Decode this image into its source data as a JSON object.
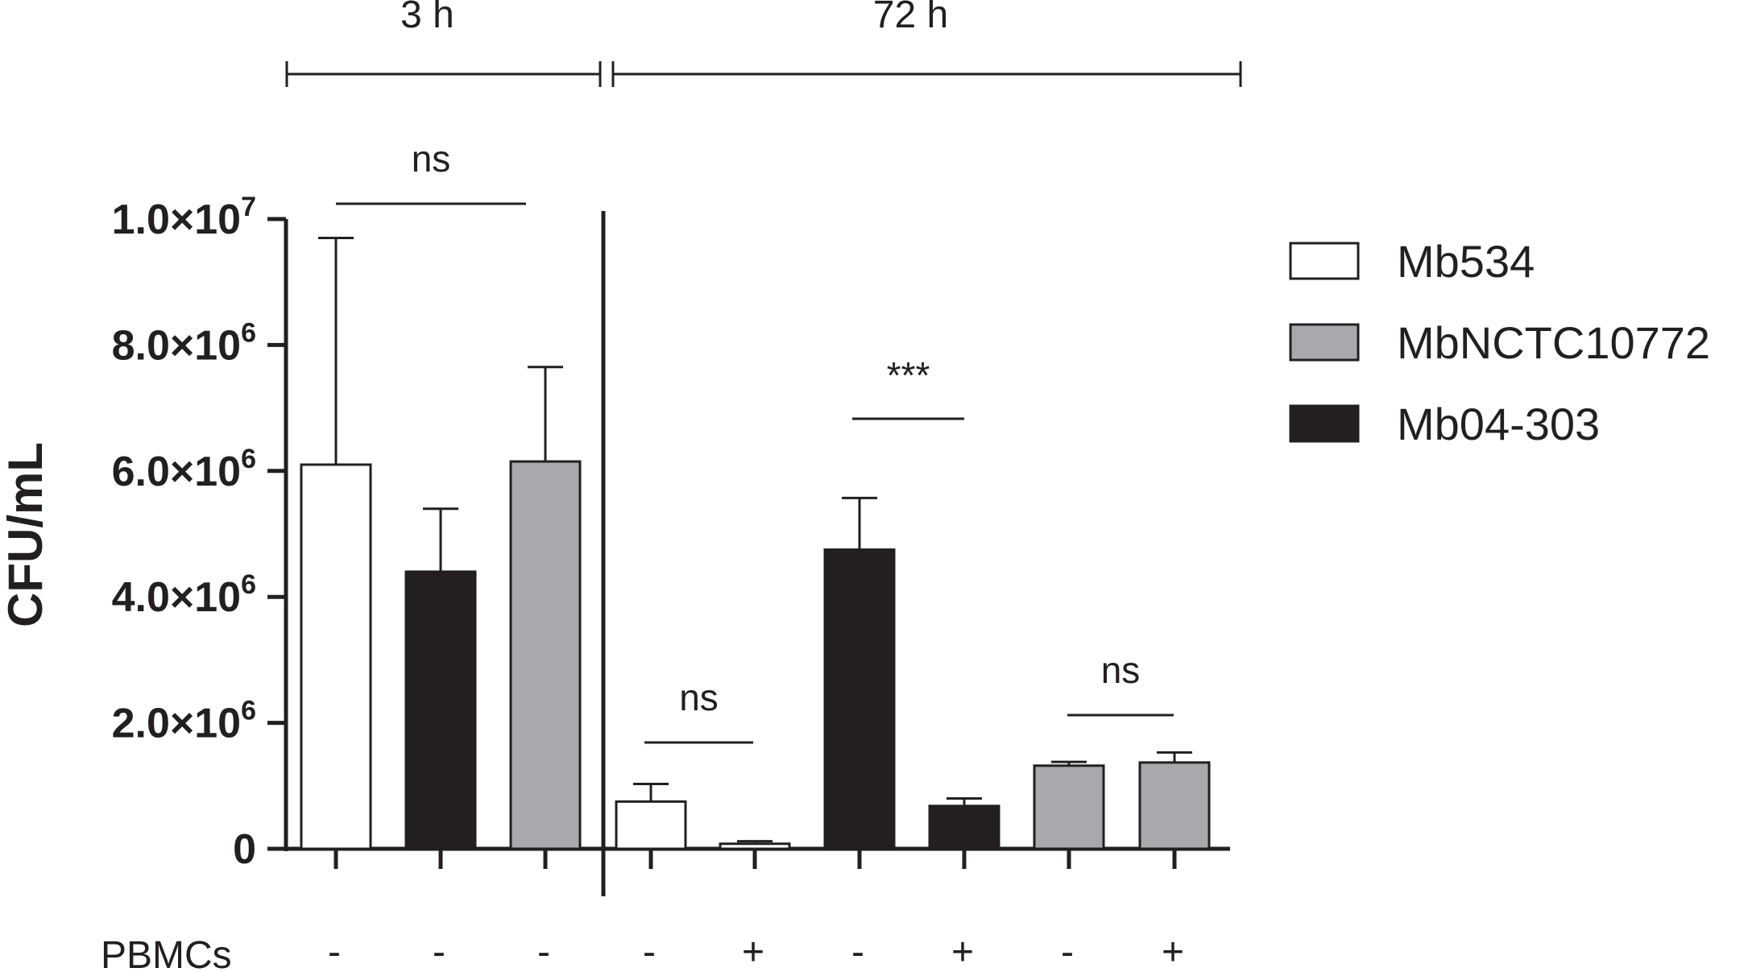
{
  "chart_data": {
    "type": "bar",
    "ylabel": "CFU/mL",
    "ylim": [
      0,
      10000000
    ],
    "yticks": [
      {
        "value": 0,
        "mant": "0",
        "exp": ""
      },
      {
        "value": 2000000,
        "mant": "2.0×10",
        "exp": "6"
      },
      {
        "value": 4000000,
        "mant": "4.0×10",
        "exp": "6"
      },
      {
        "value": 6000000,
        "mant": "6.0×10",
        "exp": "6"
      },
      {
        "value": 8000000,
        "mant": "8.0×10",
        "exp": "6"
      },
      {
        "value": 10000000,
        "mant": "1.0×10",
        "exp": "7"
      }
    ],
    "series": [
      {
        "name": "Mb534",
        "color": "#ffffff"
      },
      {
        "name": "MbNCTC10772",
        "color": "#a7a9ac"
      },
      {
        "name": "Mb04-303",
        "color": "#231f20"
      }
    ],
    "time_groups": [
      {
        "label": "3 h",
        "bars": [
          0,
          1,
          2
        ]
      },
      {
        "label": "72 h",
        "bars": [
          3,
          4,
          5,
          6,
          7,
          8
        ]
      }
    ],
    "row_label": "PBMCs",
    "bars": [
      {
        "series": "Mb534",
        "value": 6100000,
        "error": 3600000,
        "pbmc": "-"
      },
      {
        "series": "Mb04-303",
        "value": 4400000,
        "error": 1000000,
        "pbmc": "-"
      },
      {
        "series": "MbNCTC10772",
        "value": 6150000,
        "error": 1500000,
        "pbmc": "-"
      },
      {
        "series": "Mb534",
        "value": 750000,
        "error": 280000,
        "pbmc": "-"
      },
      {
        "series": "Mb534",
        "value": 80000,
        "error": 40000,
        "pbmc": "+"
      },
      {
        "series": "Mb04-303",
        "value": 4750000,
        "error": 820000,
        "pbmc": "-"
      },
      {
        "series": "Mb04-303",
        "value": 680000,
        "error": 120000,
        "pbmc": "+"
      },
      {
        "series": "MbNCTC10772",
        "value": 1320000,
        "error": 60000,
        "pbmc": "-"
      },
      {
        "series": "MbNCTC10772",
        "value": 1370000,
        "error": 160000,
        "pbmc": "+"
      }
    ],
    "significance": [
      {
        "label": "ns",
        "from": 0,
        "to": 2
      },
      {
        "label": "ns",
        "from": 3,
        "to": 4
      },
      {
        "label": "***",
        "from": 5,
        "to": 6
      },
      {
        "label": "ns",
        "from": 7,
        "to": 8
      }
    ],
    "legend_placement": "right",
    "grid": false
  }
}
